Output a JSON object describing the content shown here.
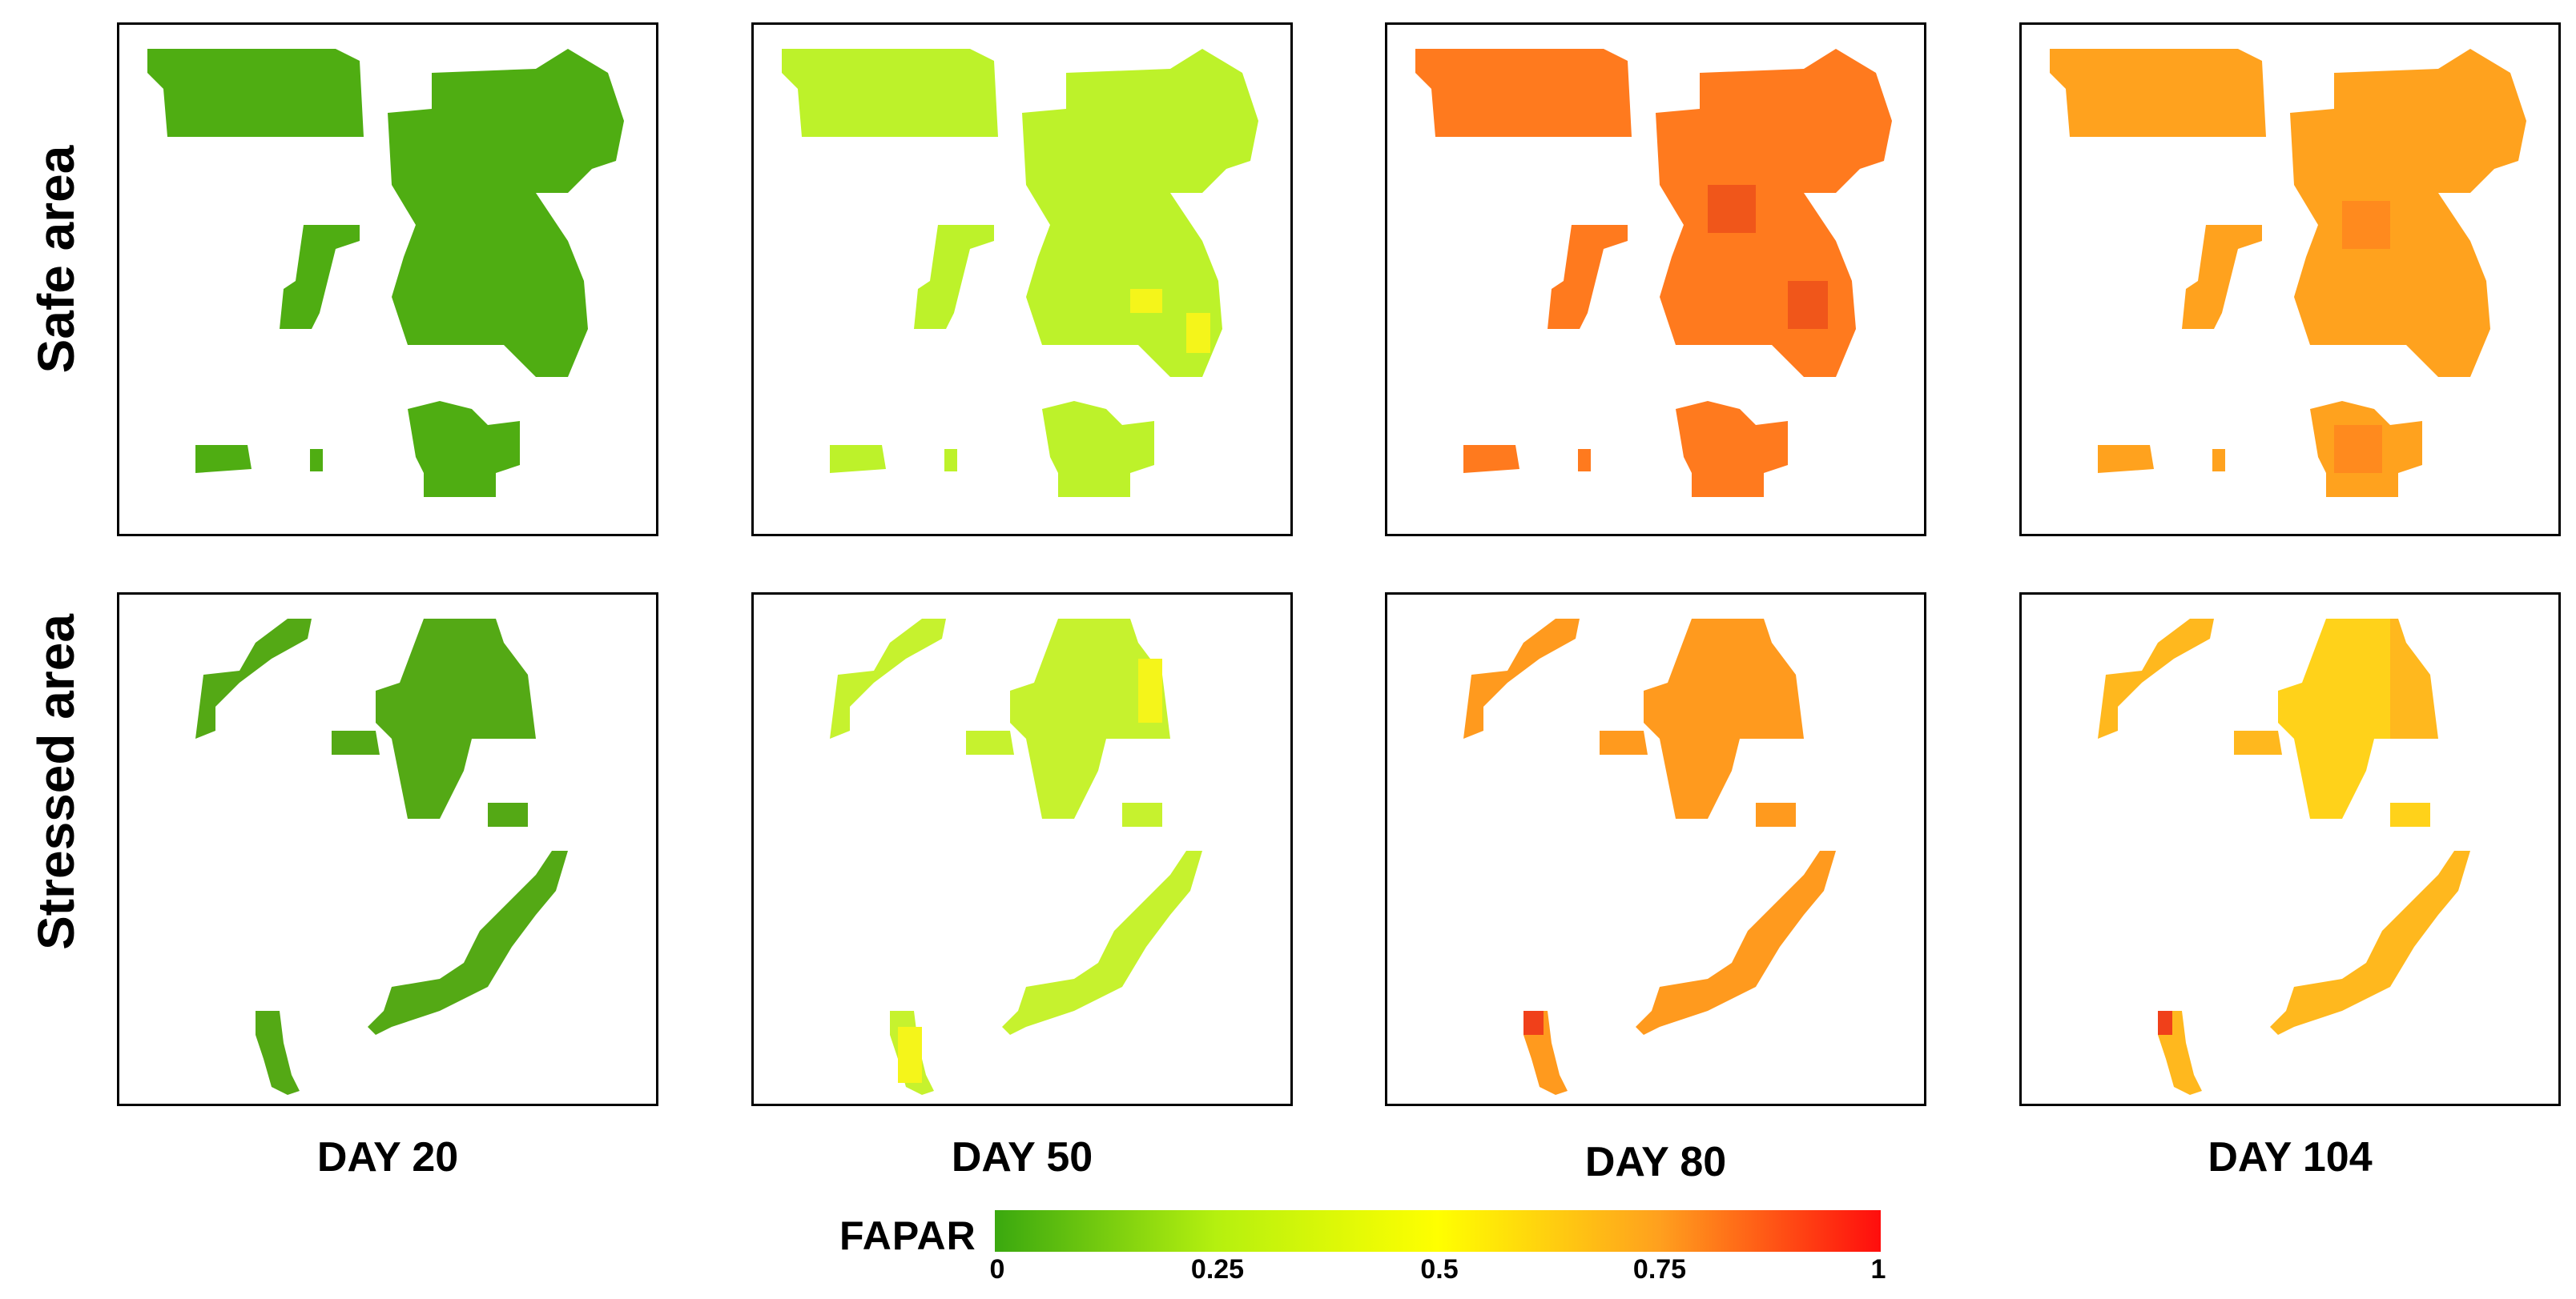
{
  "rows": [
    {
      "label": "Safe area"
    },
    {
      "label": "Stressed area"
    }
  ],
  "days": [
    {
      "label": "DAY 20"
    },
    {
      "label": "DAY 50"
    },
    {
      "label": "DAY 80"
    },
    {
      "label": "DAY 104"
    }
  ],
  "colorbar": {
    "title": "FAPAR",
    "ticks": [
      "0",
      "0.25",
      "0.5",
      "0.75",
      "1"
    ],
    "stops": [
      "#3aa80f",
      "#b5f00f",
      "#ffff00",
      "#ffa01e",
      "#ff0d0d"
    ]
  },
  "panel_colors": {
    "safe": [
      "#4fad12",
      "#bdf22a",
      "#ff7a1e",
      "#ffa21e"
    ],
    "stressed": [
      "#54a915",
      "#c6f22e",
      "#ff9a1e",
      "#ffd21a"
    ]
  }
}
